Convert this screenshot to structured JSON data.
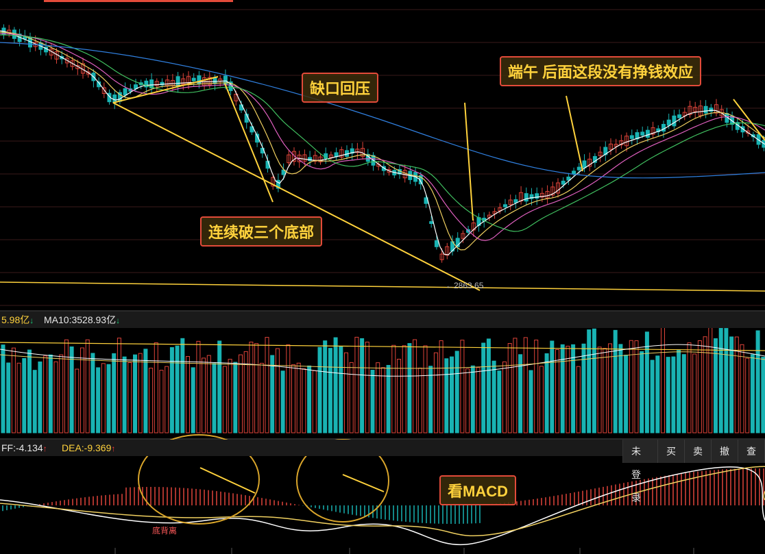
{
  "volume_header": {
    "ma5_label": "5.98亿",
    "ma10_label": "MA10:3528.93亿",
    "ma5_color": "#ffd23c",
    "ma10_color": "#e8e8e8"
  },
  "macd_header": {
    "diff_label": "FF:-4.134",
    "dea_label": "DEA:-9.369",
    "diff_color": "#e8e8e8",
    "dea_color": "#ffd23c"
  },
  "toolbar": {
    "login": "未登录",
    "buy": "买",
    "sell": "卖",
    "cancel": "撤",
    "query": "查"
  },
  "annotations": {
    "gap": "缺口回压",
    "dragon_boat": "端午 后面这段没有挣钱效应",
    "three_bottoms": "连续破三个底部",
    "watch_macd": "看MACD",
    "divergence": "底背离",
    "low_price": "←2863.65"
  },
  "colors": {
    "up": "#e0443a",
    "down": "#19b3b3",
    "ma5": "#ffffff",
    "ma10": "#f0d060",
    "ma20": "#e060c0",
    "ma30": "#40c060",
    "ma60": "#3080e0",
    "annotation": "#ffd23c"
  }
}
